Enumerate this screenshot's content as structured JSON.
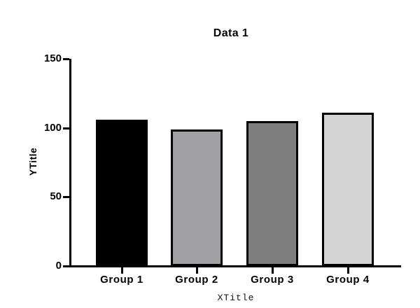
{
  "chart_data": {
    "type": "bar",
    "title": "Data 1",
    "xlabel": "XTitle",
    "ylabel": "YTitle",
    "categories": [
      "Group 1",
      "Group 2",
      "Group 3",
      "Group 4"
    ],
    "values": [
      106,
      99,
      105,
      111
    ],
    "ylim": [
      0,
      150
    ],
    "yticks": [
      0,
      50,
      100,
      150
    ],
    "bar_fill_colors": [
      "#000000",
      "#a0a0a5",
      "#7f7f7f",
      "#d4d4d4"
    ],
    "bar_border_color": "#000000",
    "axis_color": "#000000",
    "background_color": "#ffffff",
    "grid": false,
    "legend": "none"
  }
}
